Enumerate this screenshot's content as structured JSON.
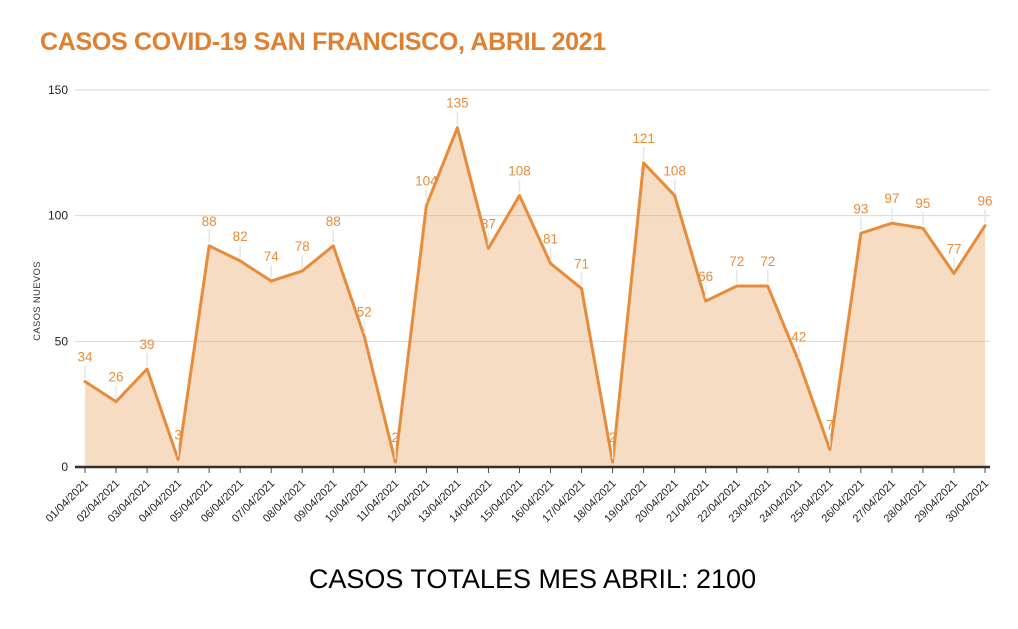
{
  "title": "CASOS COVID-19 SAN FRANCISCO, ABRIL 2021",
  "caption": "CASOS TOTALES MES ABRIL: 2100",
  "chart_data": {
    "type": "area",
    "title": "CASOS COVID-19 SAN FRANCISCO, ABRIL 2021",
    "xlabel": "",
    "ylabel": "CASOS NUEVOS",
    "categories": [
      "01/04/2021",
      "02/04/2021",
      "03/04/2021",
      "04/04/2021",
      "05/04/2021",
      "06/04/2021",
      "07/04/2021",
      "08/04/2021",
      "09/04/2021",
      "10/04/2021",
      "11/04/2021",
      "12/04/2021",
      "13/04/2021",
      "14/04/2021",
      "15/04/2021",
      "16/04/2021",
      "17/04/2021",
      "18/04/2021",
      "19/04/2021",
      "20/04/2021",
      "21/04/2021",
      "22/04/2021",
      "23/04/2021",
      "24/04/2021",
      "25/04/2021",
      "26/04/2021",
      "27/04/2021",
      "28/04/2021",
      "29/04/2021",
      "30/04/2021"
    ],
    "values": [
      34,
      26,
      39,
      3,
      88,
      82,
      74,
      78,
      88,
      52,
      2,
      104,
      135,
      87,
      108,
      81,
      71,
      2,
      121,
      108,
      66,
      72,
      72,
      42,
      7,
      93,
      97,
      95,
      77,
      96
    ],
    "total_label_value": 2100,
    "ylim": [
      0,
      150
    ],
    "yticks": [
      0,
      50,
      100,
      150
    ],
    "grid": true,
    "legend": false,
    "data_labels": true,
    "colors": {
      "line": "#E78C3A",
      "fill": "rgba(230,140,60,0.30)",
      "data_label": "#E78C3A",
      "title": "#E0802E",
      "gridline": "#D9D9D9",
      "axis_line": "#352F28",
      "tick_text": "#222222",
      "leader_line": "#E6E6E6"
    }
  }
}
